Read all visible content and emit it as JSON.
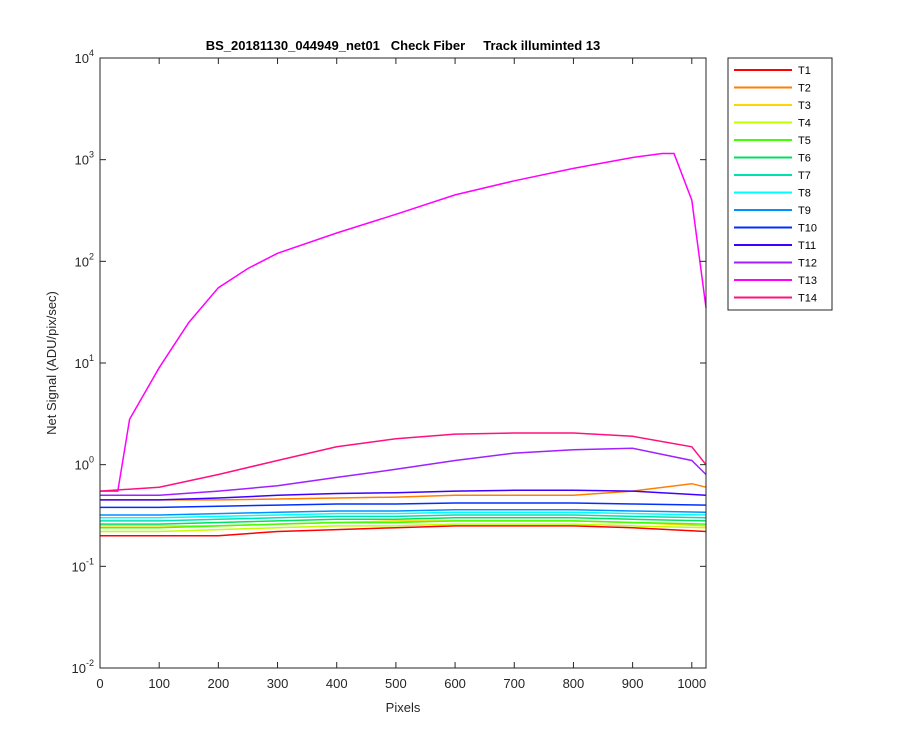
{
  "chart_data": {
    "type": "line",
    "title": "BS_20181130_044949_net01   Check Fiber     Track illuminted 13",
    "xlabel": "Pixels",
    "ylabel": "Net Signal (ADU/pix/sec)",
    "xlim": [
      0,
      1024
    ],
    "ylim": [
      0.01,
      10000
    ],
    "yscale": "log",
    "x_ticks": [
      0,
      100,
      200,
      300,
      400,
      500,
      600,
      700,
      800,
      900,
      1000
    ],
    "y_ticks": [
      {
        "value": 0.01,
        "base": "10",
        "exp": "-2"
      },
      {
        "value": 0.1,
        "base": "10",
        "exp": "-1"
      },
      {
        "value": 1,
        "base": "10",
        "exp": "0"
      },
      {
        "value": 10,
        "base": "10",
        "exp": "1"
      },
      {
        "value": 100,
        "base": "10",
        "exp": "2"
      },
      {
        "value": 1000,
        "base": "10",
        "exp": "3"
      },
      {
        "value": 10000,
        "base": "10",
        "exp": "4"
      }
    ],
    "grid": false,
    "legend_position": "outside-top-right",
    "series": [
      {
        "name": "T1",
        "color": "#ff0000",
        "x": [
          0,
          100,
          200,
          300,
          400,
          500,
          600,
          700,
          800,
          900,
          1024
        ],
        "y": [
          0.2,
          0.2,
          0.2,
          0.22,
          0.23,
          0.24,
          0.25,
          0.25,
          0.25,
          0.24,
          0.22
        ]
      },
      {
        "name": "T2",
        "color": "#ff7f00",
        "x": [
          0,
          100,
          200,
          300,
          400,
          500,
          600,
          700,
          800,
          900,
          1000,
          1024
        ],
        "y": [
          0.45,
          0.45,
          0.45,
          0.46,
          0.47,
          0.48,
          0.5,
          0.5,
          0.5,
          0.55,
          0.65,
          0.6
        ]
      },
      {
        "name": "T3",
        "color": "#ffd700",
        "x": [
          0,
          100,
          200,
          300,
          400,
          500,
          600,
          700,
          800,
          900,
          1024
        ],
        "y": [
          0.25,
          0.25,
          0.25,
          0.26,
          0.27,
          0.28,
          0.28,
          0.28,
          0.28,
          0.27,
          0.25
        ]
      },
      {
        "name": "T4",
        "color": "#bfff00",
        "x": [
          0,
          100,
          200,
          300,
          400,
          500,
          600,
          700,
          800,
          900,
          1024
        ],
        "y": [
          0.22,
          0.22,
          0.23,
          0.24,
          0.25,
          0.25,
          0.26,
          0.26,
          0.26,
          0.25,
          0.24
        ]
      },
      {
        "name": "T5",
        "color": "#40ff00",
        "x": [
          0,
          100,
          200,
          300,
          400,
          500,
          600,
          700,
          800,
          900,
          1024
        ],
        "y": [
          0.24,
          0.24,
          0.25,
          0.26,
          0.27,
          0.27,
          0.28,
          0.28,
          0.28,
          0.27,
          0.26
        ]
      },
      {
        "name": "T6",
        "color": "#00e060",
        "x": [
          0,
          100,
          200,
          300,
          400,
          500,
          600,
          700,
          800,
          900,
          1024
        ],
        "y": [
          0.26,
          0.26,
          0.27,
          0.28,
          0.29,
          0.29,
          0.3,
          0.3,
          0.3,
          0.29,
          0.28
        ]
      },
      {
        "name": "T7",
        "color": "#00e0b0",
        "x": [
          0,
          100,
          200,
          300,
          400,
          500,
          600,
          700,
          800,
          900,
          1024
        ],
        "y": [
          0.28,
          0.28,
          0.29,
          0.3,
          0.31,
          0.31,
          0.32,
          0.32,
          0.32,
          0.31,
          0.3
        ]
      },
      {
        "name": "T8",
        "color": "#00ffff",
        "x": [
          0,
          100,
          200,
          300,
          400,
          500,
          600,
          700,
          800,
          900,
          1024
        ],
        "y": [
          0.3,
          0.3,
          0.31,
          0.32,
          0.33,
          0.33,
          0.34,
          0.34,
          0.34,
          0.33,
          0.32
        ]
      },
      {
        "name": "T9",
        "color": "#0090ff",
        "x": [
          0,
          100,
          200,
          300,
          400,
          500,
          600,
          700,
          800,
          900,
          1024
        ],
        "y": [
          0.32,
          0.32,
          0.33,
          0.34,
          0.35,
          0.35,
          0.36,
          0.36,
          0.36,
          0.35,
          0.34
        ]
      },
      {
        "name": "T10",
        "color": "#0030ff",
        "x": [
          0,
          100,
          200,
          300,
          400,
          500,
          600,
          700,
          800,
          900,
          1024
        ],
        "y": [
          0.38,
          0.38,
          0.39,
          0.4,
          0.41,
          0.41,
          0.42,
          0.42,
          0.42,
          0.41,
          0.4
        ]
      },
      {
        "name": "T11",
        "color": "#4000ff",
        "x": [
          0,
          100,
          200,
          300,
          400,
          500,
          600,
          700,
          800,
          900,
          1024
        ],
        "y": [
          0.45,
          0.45,
          0.47,
          0.5,
          0.52,
          0.53,
          0.55,
          0.56,
          0.56,
          0.55,
          0.5
        ]
      },
      {
        "name": "T12",
        "color": "#a020ff",
        "x": [
          0,
          100,
          200,
          300,
          400,
          500,
          600,
          700,
          800,
          900,
          1000,
          1024
        ],
        "y": [
          0.5,
          0.5,
          0.55,
          0.62,
          0.75,
          0.9,
          1.1,
          1.3,
          1.4,
          1.45,
          1.1,
          0.8
        ]
      },
      {
        "name": "T13",
        "color": "#ff00ff",
        "x": [
          0,
          20,
          30,
          50,
          100,
          150,
          200,
          250,
          300,
          400,
          500,
          600,
          700,
          800,
          900,
          950,
          970,
          1000,
          1024
        ],
        "y": [
          0.55,
          0.55,
          0.55,
          2.8,
          9,
          25,
          55,
          85,
          120,
          190,
          290,
          450,
          620,
          820,
          1050,
          1150,
          1150,
          400,
          35
        ]
      },
      {
        "name": "T14",
        "color": "#ff1080",
        "x": [
          0,
          100,
          200,
          300,
          400,
          500,
          600,
          700,
          800,
          900,
          1000,
          1024
        ],
        "y": [
          0.55,
          0.6,
          0.8,
          1.1,
          1.5,
          1.8,
          2.0,
          2.05,
          2.05,
          1.9,
          1.5,
          1.0
        ]
      }
    ]
  }
}
